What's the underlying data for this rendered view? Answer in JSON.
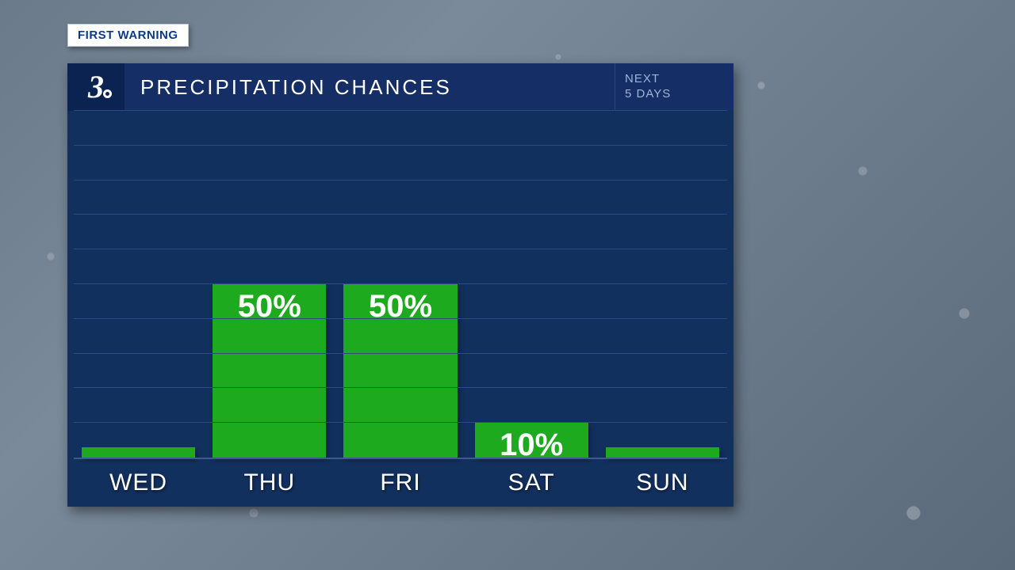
{
  "badge": {
    "text": "FIRST WARNING",
    "bg": "#ffffff",
    "fg": "#0b3a8a"
  },
  "logo": {
    "glyph": "3",
    "color": "#ffffff",
    "bg": "#0b2350"
  },
  "title": "PRECIPITATION CHANCES",
  "subtitle": {
    "line1": "NEXT",
    "line2": "5 DAYS"
  },
  "chart": {
    "type": "bar",
    "panel_bg": "#12305e",
    "header_bg": "#152f66",
    "grid_color": "#2a4a80",
    "axis_color": "#3a5a90",
    "text_color": "#ffffff",
    "subtitle_color": "#9fb3d9",
    "bar_color": "#1eaa1e",
    "bar_label_fontsize": 40,
    "x_label_fontsize": 30,
    "title_fontsize": 26,
    "ylim": [
      0,
      100
    ],
    "gridlines": [
      10,
      20,
      30,
      40,
      50,
      60,
      70,
      80,
      90,
      100
    ],
    "min_bar_height_pct": 3,
    "label_threshold_pct": 8,
    "categories": [
      "WED",
      "THU",
      "FRI",
      "SAT",
      "SUN"
    ],
    "values": [
      0,
      50,
      50,
      10,
      0
    ],
    "value_labels": [
      "",
      "50%",
      "50%",
      "10%",
      ""
    ]
  }
}
